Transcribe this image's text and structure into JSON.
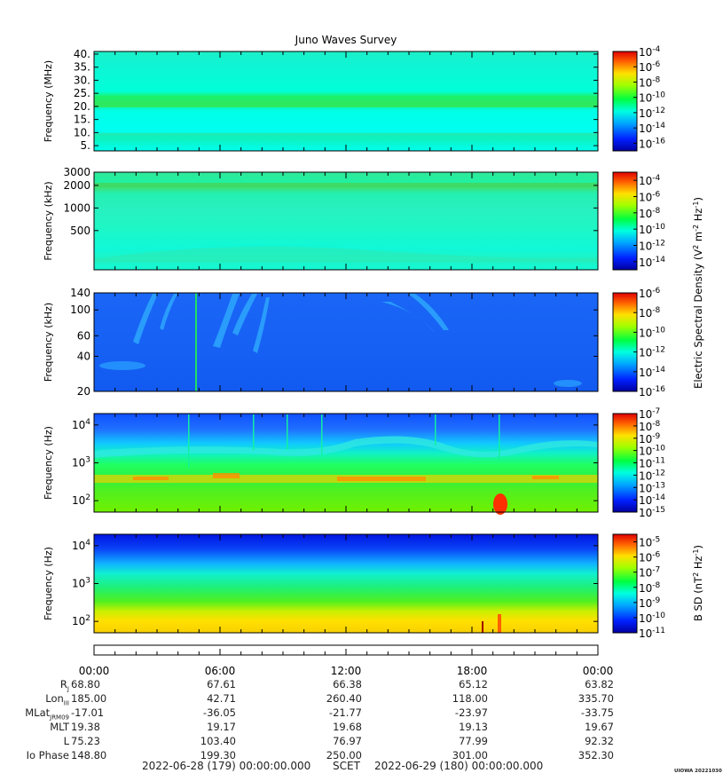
{
  "chart_data": {
    "type": "heatmap",
    "title": "Juno Waves Survey",
    "time_ticks": [
      "00:00",
      "06:00",
      "12:00",
      "18:00",
      "00:00"
    ],
    "panels": [
      {
        "id": "p1",
        "ylabel": "Frequency (MHz)",
        "yscale": "linear",
        "ylim": [
          3,
          41
        ],
        "yticks": [
          {
            "v": 40,
            "label": "40."
          },
          {
            "v": 35,
            "label": "35."
          },
          {
            "v": 30,
            "label": "30."
          },
          {
            "v": 25,
            "label": "25."
          },
          {
            "v": 20,
            "label": "20."
          },
          {
            "v": 15,
            "label": "15."
          },
          {
            "v": 10,
            "label": "10."
          },
          {
            "v": 5,
            "label": "5."
          }
        ],
        "cbar_ticks": [
          {
            "base": "10",
            "exp": "-4"
          },
          {
            "base": "10",
            "exp": "-6"
          },
          {
            "base": "10",
            "exp": "-8"
          },
          {
            "base": "10",
            "exp": "-10"
          },
          {
            "base": "10",
            "exp": "-12"
          },
          {
            "base": "10",
            "exp": "-14"
          },
          {
            "base": "10",
            "exp": "-16"
          }
        ],
        "cbar_range": [
          -17,
          -4
        ]
      },
      {
        "id": "p2",
        "ylabel": "Frequency (kHz)",
        "yscale": "log",
        "ylim": [
          150,
          3000
        ],
        "yticks": [
          {
            "v": 3000,
            "label": "3000"
          },
          {
            "v": 2000,
            "label": "2000"
          },
          {
            "v": 1000,
            "label": "1000"
          },
          {
            "v": 500,
            "label": "500"
          }
        ],
        "cbar_ticks": [
          {
            "base": "10",
            "exp": "-4"
          },
          {
            "base": "10",
            "exp": "-6"
          },
          {
            "base": "10",
            "exp": "-8"
          },
          {
            "base": "10",
            "exp": "-10"
          },
          {
            "base": "10",
            "exp": "-12"
          },
          {
            "base": "10",
            "exp": "-14"
          }
        ],
        "cbar_range": [
          -15,
          -3
        ]
      },
      {
        "id": "p3",
        "ylabel": "Frequency (kHz)",
        "yscale": "log",
        "ylim": [
          20,
          140
        ],
        "yticks": [
          {
            "v": 140,
            "label": "140"
          },
          {
            "v": 100,
            "label": "100"
          },
          {
            "v": 60,
            "label": "60"
          },
          {
            "v": 40,
            "label": "40"
          },
          {
            "v": 20,
            "label": "20"
          }
        ],
        "cbar_ticks": [
          {
            "base": "10",
            "exp": "-6"
          },
          {
            "base": "10",
            "exp": "-8"
          },
          {
            "base": "10",
            "exp": "-10"
          },
          {
            "base": "10",
            "exp": "-12"
          },
          {
            "base": "10",
            "exp": "-14"
          },
          {
            "base": "10",
            "exp": "-16"
          }
        ],
        "cbar_range": [
          -16,
          -6
        ]
      },
      {
        "id": "p4",
        "ylabel": "Frequency (Hz)",
        "yscale": "log",
        "ylim": [
          50,
          20000
        ],
        "yticks": [
          {
            "v": 10000,
            "label": "10",
            "exp": "4"
          },
          {
            "v": 1000,
            "label": "10",
            "exp": "3"
          },
          {
            "v": 100,
            "label": "10",
            "exp": "2"
          }
        ],
        "cbar_ticks": [
          {
            "base": "10",
            "exp": "-7"
          },
          {
            "base": "10",
            "exp": "-8"
          },
          {
            "base": "10",
            "exp": "-9"
          },
          {
            "base": "10",
            "exp": "-10"
          },
          {
            "base": "10",
            "exp": "-11"
          },
          {
            "base": "10",
            "exp": "-12"
          },
          {
            "base": "10",
            "exp": "-13"
          },
          {
            "base": "10",
            "exp": "-14"
          },
          {
            "base": "10",
            "exp": "-15"
          }
        ],
        "cbar_range": [
          -15,
          -7
        ]
      },
      {
        "id": "p5",
        "ylabel": "Frequency (Hz)",
        "yscale": "log",
        "ylim": [
          50,
          20000
        ],
        "yticks": [
          {
            "v": 10000,
            "label": "10",
            "exp": "4"
          },
          {
            "v": 1000,
            "label": "10",
            "exp": "3"
          },
          {
            "v": 100,
            "label": "10",
            "exp": "2"
          }
        ],
        "cbar_ticks": [
          {
            "base": "10",
            "exp": "-5"
          },
          {
            "base": "10",
            "exp": "-6"
          },
          {
            "base": "10",
            "exp": "-7"
          },
          {
            "base": "10",
            "exp": "-8"
          },
          {
            "base": "10",
            "exp": "-9"
          },
          {
            "base": "10",
            "exp": "-10"
          },
          {
            "base": "10",
            "exp": "-11"
          }
        ],
        "cbar_range": [
          -11,
          -4.5
        ]
      }
    ],
    "colorbar_title_electric": "Electric Spectral Density (V",
    "colorbar_title_magnetic": "B SD (nT",
    "ephemeris": {
      "labels": [
        "R",
        "Lon",
        "MLat",
        "MLT",
        "L",
        "Io Phase"
      ],
      "label_subscripts": [
        "J",
        "III",
        "JRM09",
        "",
        "",
        ""
      ],
      "rows": [
        [
          "68.80",
          "67.61",
          "66.38",
          "65.12",
          "63.82"
        ],
        [
          "185.00",
          "42.71",
          "260.40",
          "118.00",
          "335.70"
        ],
        [
          "-17.01",
          "-36.05",
          "-21.77",
          "-23.97",
          "-33.75"
        ],
        [
          "19.38",
          "19.17",
          "19.68",
          "19.13",
          "19.67"
        ],
        [
          "75.23",
          "103.40",
          "76.97",
          "77.99",
          "92.32"
        ],
        [
          "148.80",
          "199.30",
          "250.00",
          "301.00",
          "352.30"
        ]
      ]
    },
    "footer": {
      "start": "2022-06-28 (179) 00:00:00.000",
      "scet": "SCET",
      "end": "2022-06-29 (180) 00:00:00.000",
      "stamp": "UIOWA 20221030"
    }
  }
}
